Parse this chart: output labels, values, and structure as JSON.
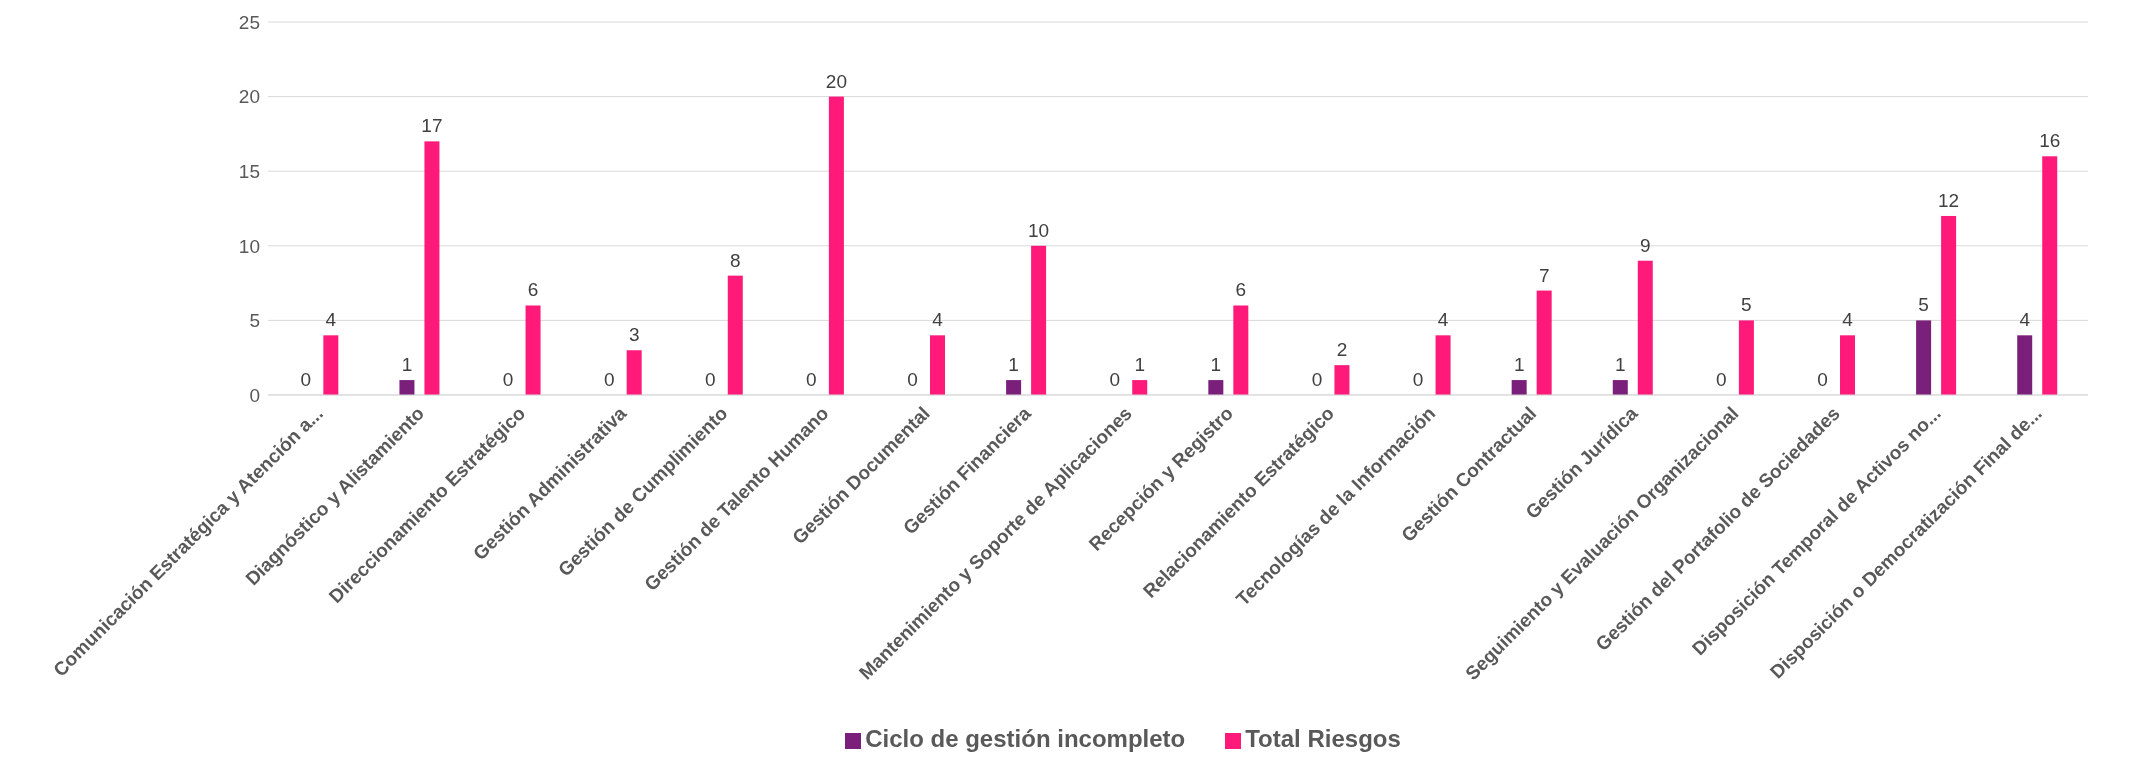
{
  "chart_data": {
    "type": "bar",
    "categories": [
      "Comunicación Estratégica y Atención a...",
      "Diagnóstico y Alistamiento",
      "Direccionamiento Estratégico",
      "Gestión Administrativa",
      "Gestión de Cumplimiento",
      "Gestión de Talento Humano",
      "Gestión Documental",
      "Gestión Financiera",
      "Mantenimiento y Soporte de Aplicaciones",
      "Recepción y Registro",
      "Relacionamiento Estratégico",
      "Tecnologías de la Información",
      "Gestión Contractual",
      "Gestión Jurídica",
      "Seguimiento y Evaluación Organizacional",
      "Gestión del Portafolio de Sociedades",
      "Disposición Temporal de Activos no...",
      "Disposición o Democratización Final de..."
    ],
    "series": [
      {
        "name": "Ciclo de gestión incompleto",
        "color": "#7a1f7a",
        "values": [
          0,
          1,
          0,
          0,
          0,
          0,
          0,
          1,
          0,
          1,
          0,
          0,
          1,
          1,
          0,
          0,
          5,
          4
        ]
      },
      {
        "name": "Total Riesgos",
        "color": "#ff1a7a",
        "values": [
          4,
          17,
          6,
          3,
          8,
          20,
          4,
          10,
          1,
          6,
          2,
          4,
          7,
          9,
          5,
          4,
          12,
          16
        ]
      }
    ],
    "ylim": [
      0,
      25
    ],
    "yticks": [
      0,
      5,
      10,
      15,
      20,
      25
    ],
    "grid": "y",
    "legend": "bottom",
    "data_labels": true
  }
}
